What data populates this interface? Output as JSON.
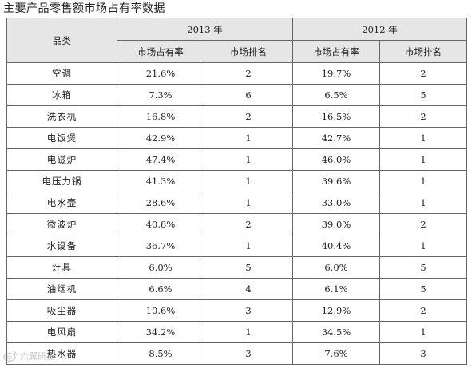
{
  "title": "主要产品零售额市场占有率数据",
  "table": {
    "category_header": "品类",
    "years": [
      "2013 年",
      "2012 年"
    ],
    "sub_headers": [
      "市场占有率",
      "市场排名",
      "市场占有率",
      "市场排名"
    ],
    "rows": [
      {
        "category": "空调",
        "share_2013": "21.6%",
        "rank_2013": "2",
        "share_2012": "19.7%",
        "rank_2012": "2"
      },
      {
        "category": "冰箱",
        "share_2013": "7.3%",
        "rank_2013": "6",
        "share_2012": "6.5%",
        "rank_2012": "5"
      },
      {
        "category": "洗衣机",
        "share_2013": "16.8%",
        "rank_2013": "2",
        "share_2012": "16.5%",
        "rank_2012": "2"
      },
      {
        "category": "电饭煲",
        "share_2013": "42.9%",
        "rank_2013": "1",
        "share_2012": "42.7%",
        "rank_2012": "1"
      },
      {
        "category": "电磁炉",
        "share_2013": "47.4%",
        "rank_2013": "1",
        "share_2012": "46.0%",
        "rank_2012": "1"
      },
      {
        "category": "电压力锅",
        "share_2013": "41.3%",
        "rank_2013": "1",
        "share_2012": "39.6%",
        "rank_2012": "1"
      },
      {
        "category": "电水壶",
        "share_2013": "28.6%",
        "rank_2013": "1",
        "share_2012": "33.0%",
        "rank_2012": "1"
      },
      {
        "category": "微波炉",
        "share_2013": "40.8%",
        "rank_2013": "2",
        "share_2012": "39.0%",
        "rank_2012": "2"
      },
      {
        "category": "水设备",
        "share_2013": "36.7%",
        "rank_2013": "1",
        "share_2012": "40.4%",
        "rank_2012": "1"
      },
      {
        "category": "灶具",
        "share_2013": "6.0%",
        "rank_2013": "5",
        "share_2012": "6.0%",
        "rank_2012": "5"
      },
      {
        "category": "油烟机",
        "share_2013": "6.6%",
        "rank_2013": "4",
        "share_2012": "6.1%",
        "rank_2012": "5"
      },
      {
        "category": "吸尘器",
        "share_2013": "10.6%",
        "rank_2013": "3",
        "share_2012": "12.9%",
        "rank_2012": "2"
      },
      {
        "category": "电风扇",
        "share_2013": "34.2%",
        "rank_2013": "1",
        "share_2012": "34.5%",
        "rank_2012": "1"
      },
      {
        "category": "热水器",
        "share_2013": "8.5%",
        "rank_2013": "3",
        "share_2012": "7.6%",
        "rank_2012": "3"
      }
    ]
  },
  "watermark": {
    "icon": "weibo-logo-icon",
    "text": "六翼研报"
  }
}
